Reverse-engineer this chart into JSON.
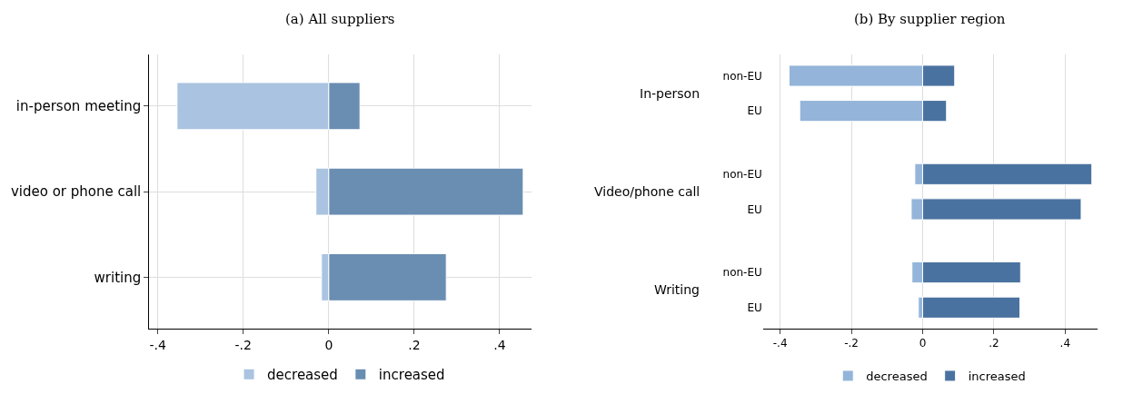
{
  "chart_data": [
    {
      "type": "bar",
      "orientation": "horizontal",
      "stacked": true,
      "title": "(a) All suppliers",
      "categories": [
        "in-person meeting",
        "video or phone call",
        "writing"
      ],
      "series": [
        {
          "name": "decreased",
          "color": "#a9c3e0",
          "values": [
            -0.355,
            -0.03,
            -0.017
          ]
        },
        {
          "name": "increased",
          "color": "#6a8db2",
          "values": [
            0.073,
            0.455,
            0.275
          ]
        }
      ],
      "xlim": [
        -0.42,
        0.474
      ],
      "xticks": [
        {
          "value": -0.4,
          "label": "-.4"
        },
        {
          "value": -0.2,
          "label": "-.2"
        },
        0,
        {
          "value": 0.2,
          "label": ".2"
        },
        {
          "value": 0.4,
          "label": ".4"
        }
      ],
      "grid": true,
      "legend": "bottom"
    },
    {
      "type": "bar",
      "orientation": "horizontal",
      "stacked": true,
      "title": "(b) By supplier region",
      "categories": [
        "non-EU",
        "EU",
        "non-EU",
        "EU",
        "non-EU",
        "EU"
      ],
      "annotations": [
        "In-person",
        "Video/phone call",
        "Writing"
      ],
      "series": [
        {
          "name": "decreased",
          "color": "#94b5d9",
          "values": [
            -0.375,
            -0.345,
            -0.022,
            -0.032,
            -0.03,
            -0.012
          ]
        },
        {
          "name": "increased",
          "color": "#4a72a0",
          "values": [
            0.09,
            0.067,
            0.475,
            0.445,
            0.275,
            0.273
          ]
        }
      ],
      "xlim": [
        -0.448,
        0.49
      ],
      "xticks": [
        {
          "value": -0.4,
          "label": "-.4"
        },
        {
          "value": -0.2,
          "label": "-.2"
        },
        0,
        {
          "value": 0.2,
          "label": ".2"
        },
        {
          "value": 0.4,
          "label": ".4"
        }
      ],
      "grid": "x",
      "legend": "bottom"
    }
  ]
}
